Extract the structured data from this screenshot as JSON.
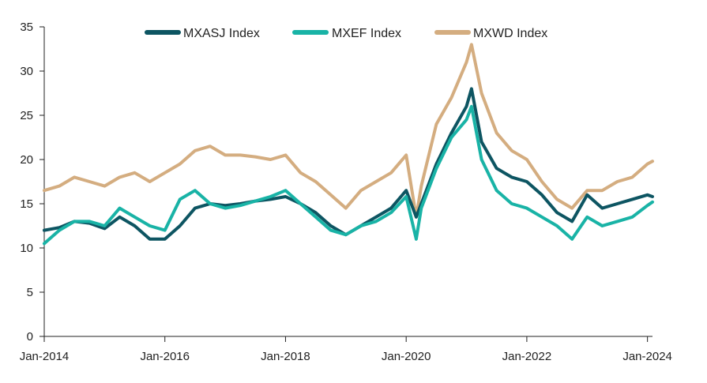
{
  "chart_data": {
    "type": "line",
    "title": "",
    "xlabel": "",
    "ylabel": "",
    "x_ticks": [
      "Jan-2014",
      "Jan-2016",
      "Jan-2018",
      "Jan-2020",
      "Jan-2022",
      "Jan-2024"
    ],
    "y_ticks": [
      "0",
      "5",
      "10",
      "15",
      "20",
      "25",
      "30",
      "35"
    ],
    "ylim": [
      0,
      35
    ],
    "xlim": [
      "2014-01",
      "2024-02"
    ],
    "grid": false,
    "legend": "top-center",
    "x": [
      "2014-01",
      "2014-04",
      "2014-07",
      "2014-10",
      "2015-01",
      "2015-04",
      "2015-07",
      "2015-10",
      "2016-01",
      "2016-04",
      "2016-07",
      "2016-10",
      "2017-01",
      "2017-04",
      "2017-07",
      "2017-10",
      "2018-01",
      "2018-04",
      "2018-07",
      "2018-10",
      "2019-01",
      "2019-04",
      "2019-07",
      "2019-10",
      "2020-01",
      "2020-03",
      "2020-04",
      "2020-07",
      "2020-10",
      "2021-01",
      "2021-02",
      "2021-04",
      "2021-07",
      "2021-10",
      "2022-01",
      "2022-04",
      "2022-07",
      "2022-10",
      "2023-01",
      "2023-04",
      "2023-07",
      "2023-10",
      "2024-01",
      "2024-02"
    ],
    "series": [
      {
        "name": "MXASJ Index",
        "color": "#0d5562",
        "values": [
          12.0,
          12.3,
          13.0,
          12.8,
          12.2,
          13.5,
          12.5,
          11.0,
          11.0,
          12.5,
          14.5,
          15.0,
          14.8,
          15.0,
          15.3,
          15.5,
          15.8,
          15.0,
          14.0,
          12.5,
          11.5,
          12.5,
          13.5,
          14.5,
          16.5,
          13.5,
          15.0,
          19.5,
          23.0,
          26.0,
          28.0,
          22.0,
          19.0,
          18.0,
          17.5,
          16.0,
          14.0,
          13.0,
          16.0,
          14.5,
          15.0,
          15.5,
          16.0,
          15.8
        ]
      },
      {
        "name": "MXEF Index",
        "color": "#19b3a6",
        "values": [
          10.5,
          12.0,
          13.0,
          13.0,
          12.5,
          14.5,
          13.5,
          12.5,
          12.0,
          15.5,
          16.5,
          15.0,
          14.5,
          14.8,
          15.3,
          15.8,
          16.5,
          15.0,
          13.5,
          12.0,
          11.5,
          12.5,
          13.0,
          14.0,
          15.8,
          11.0,
          14.5,
          19.0,
          22.5,
          24.5,
          26.0,
          20.0,
          16.5,
          15.0,
          14.5,
          13.5,
          12.5,
          11.0,
          13.5,
          12.5,
          13.0,
          13.5,
          14.8,
          15.2
        ]
      },
      {
        "name": "MXWD Index",
        "color": "#d4ad80",
        "values": [
          16.5,
          17.0,
          18.0,
          17.5,
          17.0,
          18.0,
          18.5,
          17.5,
          18.5,
          19.5,
          21.0,
          21.5,
          20.5,
          20.5,
          20.3,
          20.0,
          20.5,
          18.5,
          17.5,
          16.0,
          14.5,
          16.5,
          17.5,
          18.5,
          20.5,
          13.5,
          17.0,
          24.0,
          27.0,
          31.0,
          33.0,
          27.5,
          23.0,
          21.0,
          20.0,
          17.5,
          15.5,
          14.5,
          16.5,
          16.5,
          17.5,
          18.0,
          19.5,
          19.8
        ]
      }
    ]
  }
}
